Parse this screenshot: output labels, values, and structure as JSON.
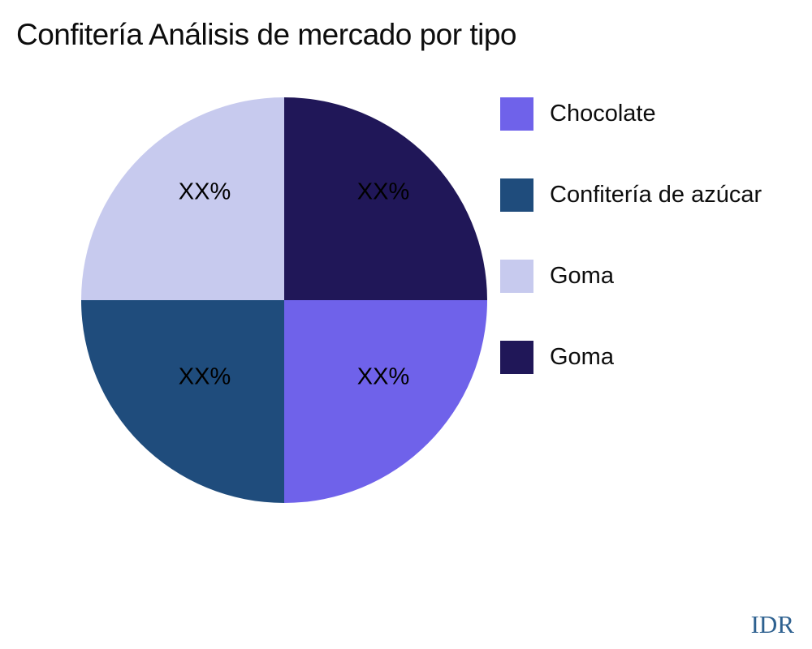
{
  "chart_data": {
    "type": "pie",
    "title": "Confitería Análisis de mercado por tipo",
    "start_angle_deg": 0,
    "direction": "clockwise",
    "legend_position": "right",
    "slices": [
      {
        "label": "Goma",
        "value": 25,
        "display_label": "XX%",
        "color": "#201758",
        "quadrant": "top-right"
      },
      {
        "label": "Chocolate",
        "value": 25,
        "display_label": "XX%",
        "color": "#6f62ea",
        "quadrant": "bottom-right"
      },
      {
        "label": "Confitería de azúcar",
        "value": 25,
        "display_label": "XX%",
        "color": "#1f4c7c",
        "quadrant": "bottom-left"
      },
      {
        "label": "Goma",
        "value": 25,
        "display_label": "XX%",
        "color": "#c7caee",
        "quadrant": "top-left"
      }
    ],
    "legend": [
      {
        "label": "Chocolate",
        "color": "#6f62ea"
      },
      {
        "label": "Confitería de azúcar",
        "color": "#1f4c7c"
      },
      {
        "label": "Goma",
        "color": "#c7caee"
      },
      {
        "label": "Goma",
        "color": "#201758"
      }
    ]
  },
  "styles": {
    "title_color": "#0d0d0d",
    "slice_label_color": "#000000",
    "legend_text_color": "#0d0d0d"
  },
  "watermark": {
    "text": "IDR",
    "color": "#2e6190"
  }
}
